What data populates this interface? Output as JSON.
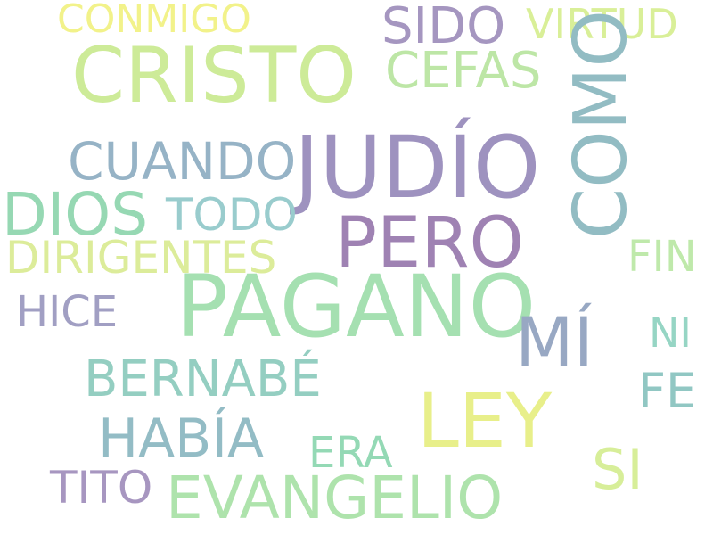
{
  "words": [
    {
      "text": "CONMIGO",
      "color": "#f2f28a"
    },
    {
      "text": "SIDO",
      "color": "#a596c0"
    },
    {
      "text": "VIRTUD",
      "color": "#d9ef98"
    },
    {
      "text": "CRISTO",
      "color": "#cdeb98"
    },
    {
      "text": "CEFAS",
      "color": "#bde6a6"
    },
    {
      "text": "COMO",
      "color": "#92bcc3"
    },
    {
      "text": "JUDÍO",
      "color": "#9e92bf"
    },
    {
      "text": "CUANDO",
      "color": "#96b3c6"
    },
    {
      "text": "DIOS",
      "color": "#96d8b3"
    },
    {
      "text": "TODO",
      "color": "#99cccd"
    },
    {
      "text": "PERO",
      "color": "#9f82b3"
    },
    {
      "text": "DIRIGENTES",
      "color": "#dcec9a"
    },
    {
      "text": "FIN",
      "color": "#bfe9ab"
    },
    {
      "text": "HICE",
      "color": "#a19fc3"
    },
    {
      "text": "PAGANO",
      "color": "#a5e0b1"
    },
    {
      "text": "MÍ",
      "color": "#98a8c3"
    },
    {
      "text": "NI",
      "color": "#96d5c4"
    },
    {
      "text": "BERNABÉ",
      "color": "#94cec1"
    },
    {
      "text": "FE",
      "color": "#91c7c3"
    },
    {
      "text": "LEY",
      "color": "#e8ef8a"
    },
    {
      "text": "HABÍA",
      "color": "#93bcc5"
    },
    {
      "text": "ERA",
      "color": "#94d9b5"
    },
    {
      "text": "SI",
      "color": "#d7ee99"
    },
    {
      "text": "TITO",
      "color": "#a796c0"
    },
    {
      "text": "EVANGELIO",
      "color": "#aee3ac"
    }
  ]
}
